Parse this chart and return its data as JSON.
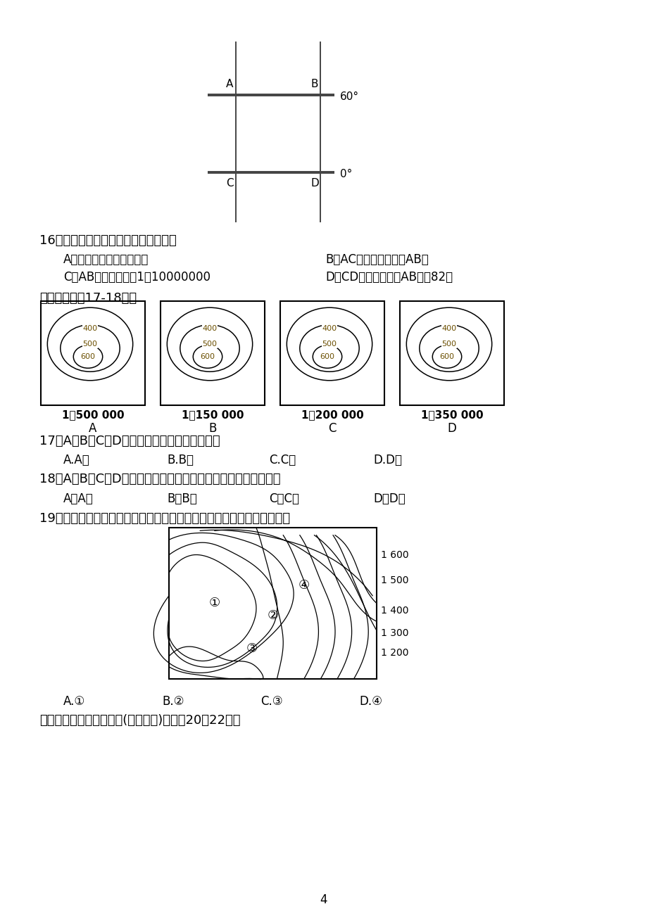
{
  "background_color": "#ffffff",
  "page_number": "4",
  "q16_text": "16、有关该图比例尺的叙述，正确的是",
  "q16_optA": "A．图上比例尺到处都一样",
  "q16_optB": "B．AC段的比例尺大于AB段",
  "q16_optC": "C．AB段的比例尺为1：10000000",
  "q16_optD": "D．CD段的比例尺比AB段大82倍",
  "read_map_text": "读下图，完成17-18题：",
  "contour_scales": [
    "1：500 000",
    "1：150 000",
    "1：200 000",
    "1：350 000"
  ],
  "contour_labels": [
    "A",
    "B",
    "C",
    "D"
  ],
  "contour_values": [
    "400",
    "500",
    "600"
  ],
  "q17_text": "17、A、B、C、D四幅图中，坡度最陀的一幅是",
  "q17_optA": "A.A图",
  "q17_optB": "B.B图",
  "q17_optC": "C.C图",
  "q17_optD": "D.D图",
  "q18_text": "18、A、B、C、D四幅图中，表示实地范围最大，内容最简略的是",
  "q18_optA": "A、A图",
  "q18_optB": "B、B图",
  "q18_optC": "C、C图",
  "q18_optD": "D、D图",
  "q19_text": "19、下图为泥石流多发区域，灾后重建居民点，最安全的选址是（　　）",
  "q19_optA": "A.①",
  "q19_optB": "B.②",
  "q19_optC": "C.③",
  "q19_optD": "D.④",
  "read_contour_text": "读下图某地等高线示意图(单位：米)，回筂20～22题。"
}
